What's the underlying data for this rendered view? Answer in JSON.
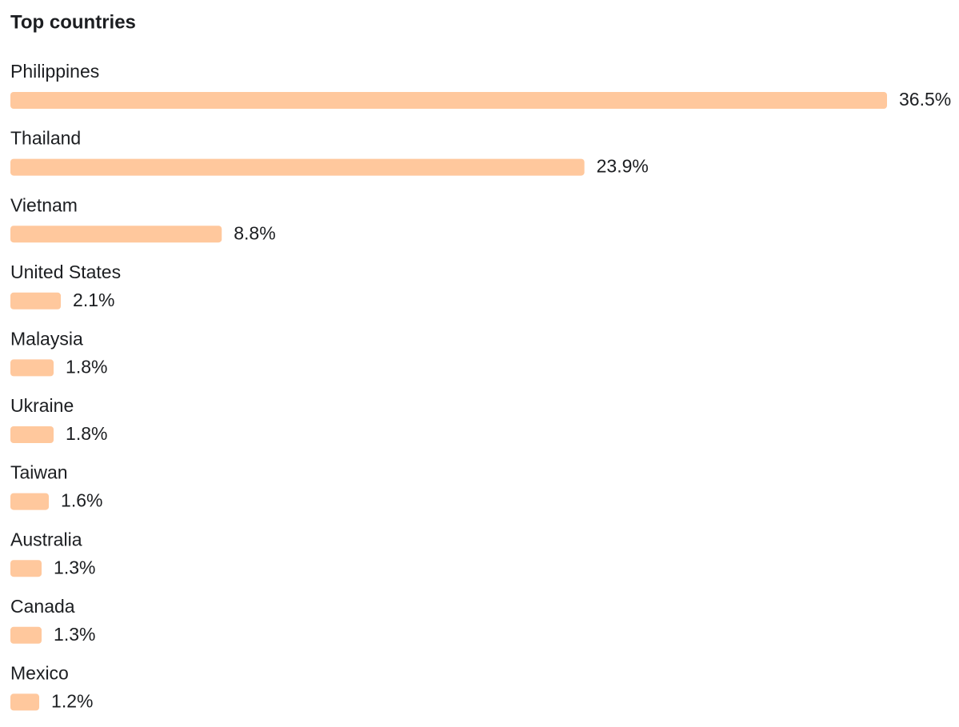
{
  "chart_data": {
    "type": "bar",
    "title": "Top countries",
    "categories": [
      "Philippines",
      "Thailand",
      "Vietnam",
      "United States",
      "Malaysia",
      "Ukraine",
      "Taiwan",
      "Australia",
      "Canada",
      "Mexico"
    ],
    "values": [
      36.5,
      23.9,
      8.8,
      2.1,
      1.8,
      1.8,
      1.6,
      1.3,
      1.3,
      1.2
    ],
    "value_labels": [
      "36.5%",
      "23.9%",
      "8.8%",
      "2.1%",
      "1.8%",
      "1.8%",
      "1.6%",
      "1.3%",
      "1.3%",
      "1.2%"
    ],
    "color": "#ffc89d"
  }
}
